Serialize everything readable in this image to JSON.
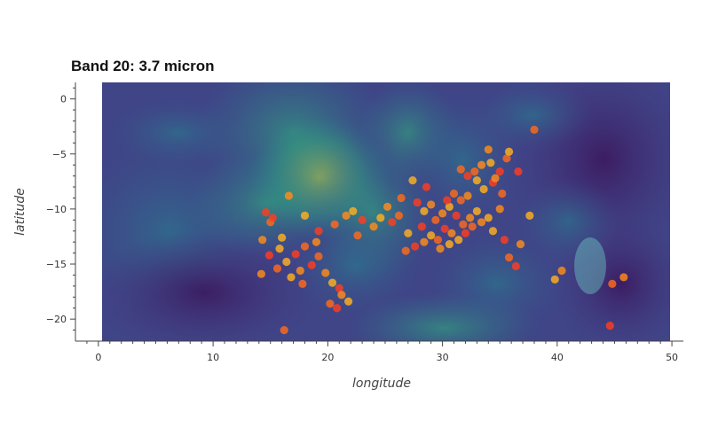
{
  "chart_data": {
    "type": "scatter",
    "title": "Band 20: 3.7 micron",
    "xlabel": "longitude",
    "ylabel": "latitude",
    "xlim": [
      -2,
      51
    ],
    "ylim": [
      -22,
      1.5
    ],
    "image_extent": {
      "x": [
        0,
        49.3
      ],
      "y": [
        -21.8,
        1.5
      ]
    },
    "grid": false,
    "background_image": "viridis raster of 3.7 micron brightness (band 20)",
    "x_ticks": [
      0,
      10,
      20,
      30,
      40,
      50
    ],
    "y_ticks": [
      0,
      -5,
      -10,
      -15,
      -20
    ],
    "x_tick_labels": [
      "0",
      "10",
      "20",
      "30",
      "40",
      "50"
    ],
    "y_tick_labels": [
      "0",
      "−5",
      "−10",
      "−15",
      "−20"
    ],
    "point_colors": [
      "#ff3d1f",
      "#ff6a1a",
      "#ff8c1a",
      "#ffb020"
    ],
    "series": [
      {
        "points": [
          [
            14.6,
            -10.3
          ],
          [
            15.0,
            -11.2
          ],
          [
            14.3,
            -12.8
          ],
          [
            15.8,
            -13.6
          ],
          [
            14.9,
            -14.2
          ],
          [
            15.6,
            -15.4
          ],
          [
            14.2,
            -15.9
          ],
          [
            16.4,
            -14.8
          ],
          [
            17.2,
            -14.1
          ],
          [
            18.0,
            -13.4
          ],
          [
            17.6,
            -15.6
          ],
          [
            16.8,
            -16.2
          ],
          [
            18.6,
            -15.1
          ],
          [
            19.2,
            -14.3
          ],
          [
            19.8,
            -15.8
          ],
          [
            20.4,
            -16.7
          ],
          [
            21.0,
            -17.2
          ],
          [
            20.2,
            -18.6
          ],
          [
            21.2,
            -17.8
          ],
          [
            21.8,
            -18.4
          ],
          [
            20.8,
            -19.0
          ],
          [
            17.8,
            -16.8
          ],
          [
            19.0,
            -13.0
          ],
          [
            16.0,
            -12.6
          ],
          [
            15.2,
            -10.8
          ],
          [
            16.2,
            -21.0
          ],
          [
            16.6,
            -8.8
          ],
          [
            18.0,
            -10.6
          ],
          [
            19.2,
            -12.0
          ],
          [
            20.6,
            -11.4
          ],
          [
            21.6,
            -10.6
          ],
          [
            22.2,
            -10.2
          ],
          [
            23.0,
            -11.0
          ],
          [
            22.6,
            -12.4
          ],
          [
            24.0,
            -11.6
          ],
          [
            24.6,
            -10.8
          ],
          [
            25.6,
            -11.2
          ],
          [
            26.2,
            -10.6
          ],
          [
            25.2,
            -9.8
          ],
          [
            27.0,
            -12.2
          ],
          [
            27.6,
            -13.4
          ],
          [
            26.8,
            -13.8
          ],
          [
            28.4,
            -13.0
          ],
          [
            29.0,
            -12.4
          ],
          [
            28.2,
            -11.6
          ],
          [
            29.4,
            -11.0
          ],
          [
            30.0,
            -10.4
          ],
          [
            30.6,
            -9.8
          ],
          [
            31.2,
            -10.6
          ],
          [
            31.8,
            -11.4
          ],
          [
            32.4,
            -10.8
          ],
          [
            33.0,
            -10.2
          ],
          [
            30.2,
            -11.8
          ],
          [
            29.6,
            -12.8
          ],
          [
            30.8,
            -12.2
          ],
          [
            31.4,
            -12.8
          ],
          [
            32.0,
            -12.2
          ],
          [
            32.6,
            -11.6
          ],
          [
            33.4,
            -11.2
          ],
          [
            34.0,
            -10.8
          ],
          [
            30.4,
            -9.2
          ],
          [
            31.0,
            -8.6
          ],
          [
            29.0,
            -9.6
          ],
          [
            28.4,
            -10.2
          ],
          [
            27.8,
            -9.4
          ],
          [
            31.6,
            -9.2
          ],
          [
            32.2,
            -8.8
          ],
          [
            33.6,
            -8.2
          ],
          [
            34.4,
            -7.6
          ],
          [
            32.8,
            -6.6
          ],
          [
            33.4,
            -6.0
          ],
          [
            34.2,
            -5.8
          ],
          [
            35.0,
            -6.6
          ],
          [
            35.6,
            -5.4
          ],
          [
            34.6,
            -7.2
          ],
          [
            33.0,
            -7.4
          ],
          [
            32.2,
            -7.0
          ],
          [
            31.6,
            -6.4
          ],
          [
            34.0,
            -4.6
          ],
          [
            35.8,
            -4.8
          ],
          [
            36.6,
            -6.6
          ],
          [
            35.2,
            -8.6
          ],
          [
            35.0,
            -10.0
          ],
          [
            34.4,
            -12.0
          ],
          [
            35.4,
            -12.8
          ],
          [
            35.8,
            -14.4
          ],
          [
            36.8,
            -13.2
          ],
          [
            37.6,
            -10.6
          ],
          [
            36.4,
            -15.2
          ],
          [
            38.0,
            -2.8
          ],
          [
            40.4,
            -15.6
          ],
          [
            39.8,
            -16.4
          ],
          [
            44.6,
            -20.6
          ],
          [
            44.8,
            -16.8
          ],
          [
            45.8,
            -16.2
          ],
          [
            27.4,
            -7.4
          ],
          [
            28.6,
            -8.0
          ],
          [
            26.4,
            -9.0
          ],
          [
            29.8,
            -13.6
          ],
          [
            30.6,
            -13.2
          ]
        ]
      }
    ]
  }
}
